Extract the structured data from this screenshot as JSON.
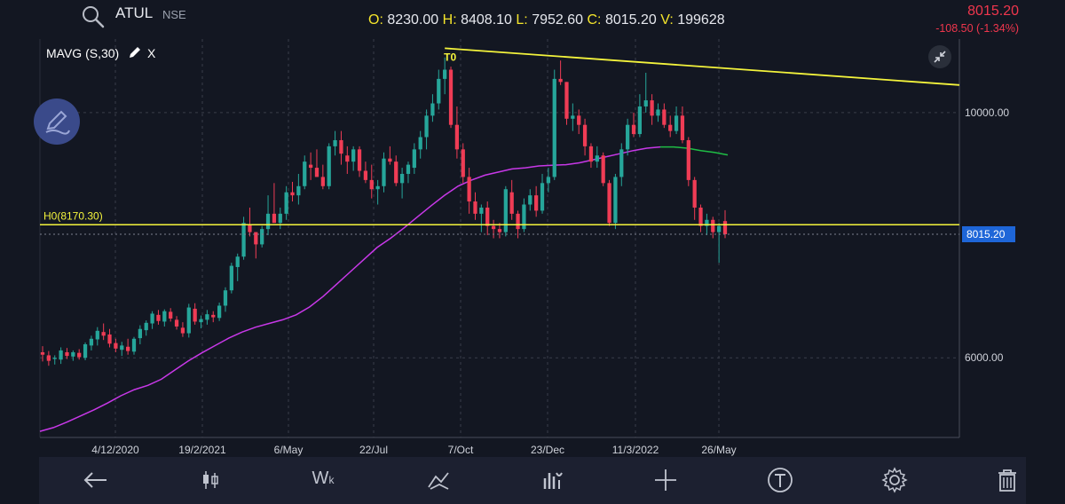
{
  "header": {
    "symbol": "ATUL",
    "exchange": "NSE",
    "ohlcv": {
      "o_label": "O:",
      "o": "8230.00",
      "h_label": "H:",
      "h": "8408.10",
      "l_label": "L:",
      "l": "7952.60",
      "c_label": "C:",
      "c": "8015.20",
      "v_label": "V:",
      "v": "199628"
    },
    "last_price": "8015.20",
    "change": "-108.50 (-1.34%)"
  },
  "indicator": {
    "label": "MAVG (S,30)",
    "close_label": "X"
  },
  "icons": {
    "search": "search-icon",
    "pencil": "pencil-icon",
    "collapse": "collapse-icon",
    "draw": "draw-icon",
    "back": "arrow-left-icon",
    "candle": "candlestick-icon",
    "weekly": "weekly-icon",
    "drawing": "drawing-tools-icon",
    "studies": "indicators-icon",
    "crosshair": "crosshair-icon",
    "text": "text-tool-icon",
    "settings": "gear-icon",
    "delete": "trash-icon"
  },
  "colors": {
    "up": "#26a69a",
    "down": "#ef3c55",
    "ma_up": "#c838e8",
    "ma_down": "#1fbd45",
    "annotation": "#f4f43c",
    "price_tag": "#1e66d8"
  },
  "chart_data": {
    "type": "candlestick",
    "x_ticks": [
      "4/12/2020",
      "19/2/2021",
      "6/May",
      "22/Jul",
      "7/Oct",
      "23/Dec",
      "11/3/2022",
      "26/May"
    ],
    "y_ticks": [
      "10000.00",
      "6000.00"
    ],
    "y_tick_values": [
      10000,
      6000
    ],
    "ylim": [
      4700,
      11200
    ],
    "candles": [
      [
        6090,
        6190,
        5940,
        6050
      ],
      [
        6040,
        6110,
        5870,
        5950
      ],
      [
        5980,
        6040,
        5890,
        6000
      ],
      [
        5970,
        6170,
        5900,
        6120
      ],
      [
        6090,
        6160,
        5980,
        6030
      ],
      [
        6020,
        6120,
        5950,
        6090
      ],
      [
        6080,
        6140,
        5970,
        6010
      ],
      [
        6000,
        6250,
        5960,
        6220
      ],
      [
        6200,
        6360,
        6120,
        6310
      ],
      [
        6300,
        6500,
        6200,
        6440
      ],
      [
        6420,
        6560,
        6290,
        6360
      ],
      [
        6380,
        6470,
        6170,
        6230
      ],
      [
        6240,
        6310,
        6090,
        6150
      ],
      [
        6130,
        6260,
        6030,
        6200
      ],
      [
        6180,
        6310,
        6050,
        6110
      ],
      [
        6100,
        6340,
        6050,
        6310
      ],
      [
        6320,
        6530,
        6220,
        6470
      ],
      [
        6450,
        6610,
        6360,
        6570
      ],
      [
        6560,
        6760,
        6470,
        6720
      ],
      [
        6700,
        6780,
        6540,
        6600
      ],
      [
        6590,
        6790,
        6510,
        6760
      ],
      [
        6750,
        6810,
        6590,
        6640
      ],
      [
        6620,
        6680,
        6460,
        6510
      ],
      [
        6490,
        6580,
        6340,
        6400
      ],
      [
        6400,
        6880,
        6330,
        6820
      ],
      [
        6800,
        6890,
        6540,
        6590
      ],
      [
        6580,
        6690,
        6480,
        6630
      ],
      [
        6620,
        6780,
        6540,
        6710
      ],
      [
        6700,
        6760,
        6580,
        6660
      ],
      [
        6650,
        6900,
        6600,
        6850
      ],
      [
        6850,
        7150,
        6750,
        7100
      ],
      [
        7100,
        7550,
        7050,
        7500
      ],
      [
        7480,
        7700,
        7250,
        7650
      ],
      [
        7650,
        8300,
        7600,
        8200
      ],
      [
        8180,
        8450,
        7980,
        8050
      ],
      [
        8050,
        8050,
        7620,
        7850
      ],
      [
        7850,
        8150,
        7800,
        8100
      ],
      [
        8100,
        8650,
        8000,
        8350
      ],
      [
        8350,
        8850,
        8200,
        8200
      ],
      [
        8200,
        8450,
        8100,
        8350
      ],
      [
        8350,
        8800,
        8250,
        8700
      ],
      [
        8700,
        8870,
        8550,
        8650
      ],
      [
        8650,
        9000,
        8500,
        8800
      ],
      [
        8800,
        9300,
        8750,
        9200
      ],
      [
        9150,
        9350,
        8900,
        9100
      ],
      [
        9100,
        9400,
        8950,
        8950
      ],
      [
        8950,
        9150,
        8750,
        8800
      ],
      [
        8800,
        9500,
        8750,
        9450
      ],
      [
        9450,
        9700,
        9300,
        9550
      ],
      [
        9550,
        9700,
        9150,
        9330
      ],
      [
        9300,
        9450,
        9000,
        9200
      ],
      [
        9200,
        9450,
        9050,
        9400
      ],
      [
        9400,
        9450,
        8950,
        9050
      ],
      [
        9050,
        9200,
        8850,
        8900
      ],
      [
        8900,
        9150,
        8600,
        8750
      ],
      [
        8750,
        8900,
        8500,
        8800
      ],
      [
        8800,
        9350,
        8700,
        9250
      ],
      [
        9250,
        9450,
        9150,
        9200
      ],
      [
        9200,
        9300,
        8800,
        8850
      ],
      [
        8850,
        9100,
        8600,
        9000
      ],
      [
        9000,
        9200,
        8850,
        9150
      ],
      [
        9100,
        9500,
        9000,
        9400
      ],
      [
        9400,
        9700,
        9250,
        9600
      ],
      [
        9600,
        10050,
        9400,
        9950
      ],
      [
        9950,
        10300,
        9850,
        10150
      ],
      [
        10150,
        10700,
        10050,
        10550
      ],
      [
        10550,
        10900,
        10300,
        10700
      ],
      [
        10700,
        10750,
        9750,
        9800
      ],
      [
        9800,
        10100,
        9250,
        9400
      ],
      [
        9400,
        9500,
        8850,
        8950
      ],
      [
        8950,
        9100,
        8350,
        8550
      ],
      [
        8550,
        8700,
        8250,
        8350
      ],
      [
        8350,
        8500,
        8050,
        8450
      ],
      [
        8450,
        8550,
        8000,
        8150
      ],
      [
        8150,
        8250,
        7950,
        8100
      ],
      [
        8100,
        8200,
        7950,
        8050
      ],
      [
        8050,
        8800,
        7980,
        8750
      ],
      [
        8700,
        8900,
        8250,
        8350
      ],
      [
        8350,
        8400,
        7950,
        8100
      ],
      [
        8100,
        8600,
        8050,
        8500
      ],
      [
        8500,
        8750,
        8400,
        8650
      ],
      [
        8650,
        8800,
        8300,
        8400
      ],
      [
        8400,
        9000,
        8350,
        8850
      ],
      [
        8850,
        9100,
        8700,
        8950
      ],
      [
        8950,
        10700,
        8900,
        10550
      ],
      [
        10550,
        10850,
        10450,
        10500
      ],
      [
        10500,
        10500,
        9800,
        9900
      ],
      [
        9900,
        10150,
        9700,
        9950
      ],
      [
        9950,
        10050,
        9650,
        9800
      ],
      [
        9800,
        9900,
        9300,
        9450
      ],
      [
        9450,
        9500,
        9100,
        9200
      ],
      [
        9200,
        9450,
        9100,
        9300
      ],
      [
        9300,
        9350,
        8800,
        8850
      ],
      [
        8850,
        8900,
        8150,
        8200
      ],
      [
        8200,
        9000,
        8100,
        8950
      ],
      [
        8950,
        9500,
        8800,
        9400
      ],
      [
        9400,
        9900,
        9300,
        9800
      ],
      [
        9800,
        10000,
        9600,
        9650
      ],
      [
        9650,
        10300,
        9600,
        10100
      ],
      [
        10100,
        10650,
        10000,
        10200
      ],
      [
        10200,
        10300,
        9800,
        9950
      ],
      [
        9950,
        10150,
        9850,
        10050
      ],
      [
        10050,
        10150,
        9750,
        9800
      ],
      [
        9800,
        9950,
        9600,
        9700
      ],
      [
        9700,
        10100,
        9650,
        9950
      ],
      [
        9950,
        10100,
        9500,
        9550
      ],
      [
        9550,
        9600,
        8800,
        8900
      ],
      [
        8900,
        8950,
        8250,
        8450
      ],
      [
        8450,
        8500,
        8050,
        8150
      ],
      [
        8150,
        8350,
        8000,
        8250
      ],
      [
        8250,
        8300,
        7950,
        8050
      ],
      [
        8050,
        8200,
        7550,
        8150
      ],
      [
        8230,
        8408.1,
        7952.6,
        8015.2
      ]
    ],
    "moving_average": {
      "name": "MAVG (S,30)",
      "values": [
        4800,
        4860,
        4950,
        5050,
        5150,
        5260,
        5380,
        5480,
        5550,
        5650,
        5800,
        5950,
        6080,
        6200,
        6320,
        6420,
        6500,
        6560,
        6620,
        6700,
        6830,
        7000,
        7200,
        7400,
        7600,
        7800,
        7950,
        8120,
        8300,
        8480,
        8650,
        8800,
        8900,
        8980,
        9030,
        9080,
        9100,
        9130,
        9140,
        9150,
        9180,
        9230,
        9280,
        9330,
        9380,
        9420,
        9440,
        9440,
        9420,
        9380,
        9350,
        9310
      ],
      "ma_up_points": 46
    },
    "annotations": {
      "trendline": {
        "from": {
          "candle_index": 66,
          "price": 11050
        },
        "to": {
          "candle_index": 155,
          "price": 10450
        }
      },
      "trendline_label": "T0",
      "horizontal_line": {
        "price": 8170.3,
        "label": "H0(8170.30)"
      },
      "last_price_line": 8015.2
    }
  }
}
